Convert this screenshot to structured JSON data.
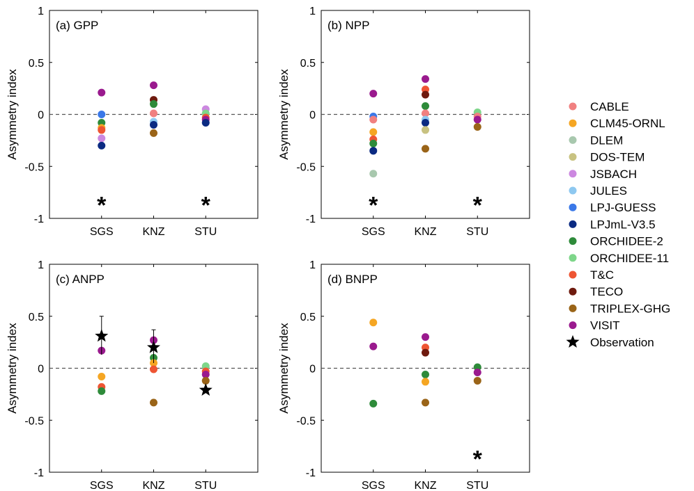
{
  "legend": [
    {
      "name": "CABLE",
      "color": "#f08080"
    },
    {
      "name": "CLM45-ORNL",
      "color": "#f5a623"
    },
    {
      "name": "DLEM",
      "color": "#a8c8ae"
    },
    {
      "name": "DOS-TEM",
      "color": "#c8c281"
    },
    {
      "name": "JSBACH",
      "color": "#cc88e0"
    },
    {
      "name": "JULES",
      "color": "#8ec8f0"
    },
    {
      "name": "LPJ-GUESS",
      "color": "#3a78e8"
    },
    {
      "name": "LPJmL-V3.5",
      "color": "#0b2a82"
    },
    {
      "name": "ORCHIDEE-2",
      "color": "#2e8b3a"
    },
    {
      "name": "ORCHIDEE-11",
      "color": "#7ed68a"
    },
    {
      "name": "T&C",
      "color": "#ee5533"
    },
    {
      "name": "TECO",
      "color": "#6e1a0e"
    },
    {
      "name": "TRIPLEX-GHG",
      "color": "#9a6418"
    },
    {
      "name": "VISIT",
      "color": "#9a1a8e"
    }
  ],
  "observation_label": "Observation",
  "chart_data": [
    {
      "type": "scatter",
      "title": "(a) GPP",
      "ylabel": "Asymmetry index",
      "xlabel": "",
      "categories": [
        "SGS",
        "KNZ",
        "STU"
      ],
      "ylim": [
        -1,
        1
      ],
      "yticks": [
        "-1",
        "-0.5",
        "0",
        "0.5",
        "1"
      ],
      "reference_line": 0,
      "points": [
        {
          "site": "SGS",
          "model": "VISIT",
          "y": 0.21
        },
        {
          "site": "SGS",
          "model": "LPJ-GUESS",
          "y": 0.0
        },
        {
          "site": "SGS",
          "model": "ORCHIDEE-2",
          "y": -0.08
        },
        {
          "site": "SGS",
          "model": "CLM45-ORNL",
          "y": -0.13
        },
        {
          "site": "SGS",
          "model": "T&C",
          "y": -0.15
        },
        {
          "site": "SGS",
          "model": "JSBACH",
          "y": -0.23
        },
        {
          "site": "SGS",
          "model": "LPJmL-V3.5",
          "y": -0.3
        },
        {
          "site": "KNZ",
          "model": "VISIT",
          "y": 0.28
        },
        {
          "site": "KNZ",
          "model": "TECO",
          "y": 0.14
        },
        {
          "site": "KNZ",
          "model": "ORCHIDEE-2",
          "y": 0.1
        },
        {
          "site": "KNZ",
          "model": "CABLE",
          "y": 0.01
        },
        {
          "site": "KNZ",
          "model": "JULES",
          "y": -0.07
        },
        {
          "site": "KNZ",
          "model": "LPJmL-V3.5",
          "y": -0.1
        },
        {
          "site": "KNZ",
          "model": "TRIPLEX-GHG",
          "y": -0.18
        },
        {
          "site": "STU",
          "model": "JSBACH",
          "y": 0.05
        },
        {
          "site": "STU",
          "model": "ORCHIDEE-11",
          "y": 0.01
        },
        {
          "site": "STU",
          "model": "T&C",
          "y": -0.03
        },
        {
          "site": "STU",
          "model": "VISIT",
          "y": -0.05
        },
        {
          "site": "STU",
          "model": "LPJmL-V3.5",
          "y": -0.08
        }
      ],
      "observations": [],
      "asterisks": [
        {
          "site": "SGS",
          "y": -0.85
        },
        {
          "site": "STU",
          "y": -0.85
        }
      ]
    },
    {
      "type": "scatter",
      "title": "(b) NPP",
      "ylabel": "Asymmetry index",
      "xlabel": "",
      "categories": [
        "SGS",
        "KNZ",
        "STU"
      ],
      "ylim": [
        -1,
        1
      ],
      "yticks": [
        "-1",
        "-0.5",
        "0",
        "0.5",
        "1"
      ],
      "reference_line": 0,
      "points": [
        {
          "site": "SGS",
          "model": "VISIT",
          "y": 0.2
        },
        {
          "site": "SGS",
          "model": "LPJ-GUESS",
          "y": -0.02
        },
        {
          "site": "SGS",
          "model": "CABLE",
          "y": -0.05
        },
        {
          "site": "SGS",
          "model": "CLM45-ORNL",
          "y": -0.17
        },
        {
          "site": "SGS",
          "model": "T&C",
          "y": -0.24
        },
        {
          "site": "SGS",
          "model": "ORCHIDEE-2",
          "y": -0.28
        },
        {
          "site": "SGS",
          "model": "LPJmL-V3.5",
          "y": -0.35
        },
        {
          "site": "SGS",
          "model": "DLEM",
          "y": -0.57
        },
        {
          "site": "KNZ",
          "model": "VISIT",
          "y": 0.34
        },
        {
          "site": "KNZ",
          "model": "T&C",
          "y": 0.24
        },
        {
          "site": "KNZ",
          "model": "TECO",
          "y": 0.19
        },
        {
          "site": "KNZ",
          "model": "ORCHIDEE-2",
          "y": 0.08
        },
        {
          "site": "KNZ",
          "model": "CABLE",
          "y": 0.01
        },
        {
          "site": "KNZ",
          "model": "JULES",
          "y": -0.05
        },
        {
          "site": "KNZ",
          "model": "LPJmL-V3.5",
          "y": -0.08
        },
        {
          "site": "KNZ",
          "model": "DOS-TEM",
          "y": -0.15
        },
        {
          "site": "KNZ",
          "model": "TRIPLEX-GHG",
          "y": -0.33
        },
        {
          "site": "STU",
          "model": "ORCHIDEE-11",
          "y": 0.02
        },
        {
          "site": "STU",
          "model": "CABLE",
          "y": -0.02
        },
        {
          "site": "STU",
          "model": "VISIT",
          "y": -0.05
        },
        {
          "site": "STU",
          "model": "TRIPLEX-GHG",
          "y": -0.12
        }
      ],
      "observations": [],
      "asterisks": [
        {
          "site": "SGS",
          "y": -0.85
        },
        {
          "site": "STU",
          "y": -0.85
        }
      ]
    },
    {
      "type": "scatter",
      "title": "(c) ANPP",
      "ylabel": "Asymmetry index",
      "xlabel": "",
      "categories": [
        "SGS",
        "KNZ",
        "STU"
      ],
      "ylim": [
        -1,
        1
      ],
      "yticks": [
        "-1",
        "-0.5",
        "0",
        "0.5",
        "1"
      ],
      "reference_line": 0,
      "points": [
        {
          "site": "SGS",
          "model": "VISIT",
          "y": 0.17
        },
        {
          "site": "SGS",
          "model": "CLM45-ORNL",
          "y": -0.08
        },
        {
          "site": "SGS",
          "model": "T&C",
          "y": -0.18
        },
        {
          "site": "SGS",
          "model": "ORCHIDEE-2",
          "y": -0.22
        },
        {
          "site": "KNZ",
          "model": "VISIT",
          "y": 0.27
        },
        {
          "site": "KNZ",
          "model": "ORCHIDEE-2",
          "y": 0.1
        },
        {
          "site": "KNZ",
          "model": "CLM45-ORNL",
          "y": 0.05
        },
        {
          "site": "KNZ",
          "model": "T&C",
          "y": -0.01
        },
        {
          "site": "KNZ",
          "model": "TRIPLEX-GHG",
          "y": -0.33
        },
        {
          "site": "STU",
          "model": "ORCHIDEE-11",
          "y": 0.02
        },
        {
          "site": "STU",
          "model": "T&C",
          "y": -0.03
        },
        {
          "site": "STU",
          "model": "VISIT",
          "y": -0.06
        },
        {
          "site": "STU",
          "model": "TRIPLEX-GHG",
          "y": -0.12
        }
      ],
      "observations": [
        {
          "site": "SGS",
          "y": 0.31,
          "err_low": 0.13,
          "err_high": 0.5
        },
        {
          "site": "KNZ",
          "y": 0.2,
          "err_low": 0.05,
          "err_high": 0.37
        },
        {
          "site": "STU",
          "y": -0.21
        }
      ],
      "asterisks": []
    },
    {
      "type": "scatter",
      "title": "(d) BNPP",
      "ylabel": "Asymmetry index",
      "xlabel": "",
      "categories": [
        "SGS",
        "KNZ",
        "STU"
      ],
      "ylim": [
        -1,
        1
      ],
      "yticks": [
        "-1",
        "-0.5",
        "0",
        "0.5",
        "1"
      ],
      "reference_line": 0,
      "points": [
        {
          "site": "SGS",
          "model": "CLM45-ORNL",
          "y": 0.44
        },
        {
          "site": "SGS",
          "model": "VISIT",
          "y": 0.21
        },
        {
          "site": "SGS",
          "model": "ORCHIDEE-2",
          "y": -0.34
        },
        {
          "site": "KNZ",
          "model": "VISIT",
          "y": 0.3
        },
        {
          "site": "KNZ",
          "model": "T&C",
          "y": 0.2
        },
        {
          "site": "KNZ",
          "model": "TECO",
          "y": 0.15
        },
        {
          "site": "KNZ",
          "model": "ORCHIDEE-2",
          "y": -0.06
        },
        {
          "site": "KNZ",
          "model": "CLM45-ORNL",
          "y": -0.13
        },
        {
          "site": "KNZ",
          "model": "TRIPLEX-GHG",
          "y": -0.33
        },
        {
          "site": "STU",
          "model": "ORCHIDEE-2",
          "y": 0.01
        },
        {
          "site": "STU",
          "model": "VISIT",
          "y": -0.04
        },
        {
          "site": "STU",
          "model": "TRIPLEX-GHG",
          "y": -0.12
        }
      ],
      "observations": [],
      "asterisks": [
        {
          "site": "STU",
          "y": -0.85
        }
      ]
    }
  ]
}
